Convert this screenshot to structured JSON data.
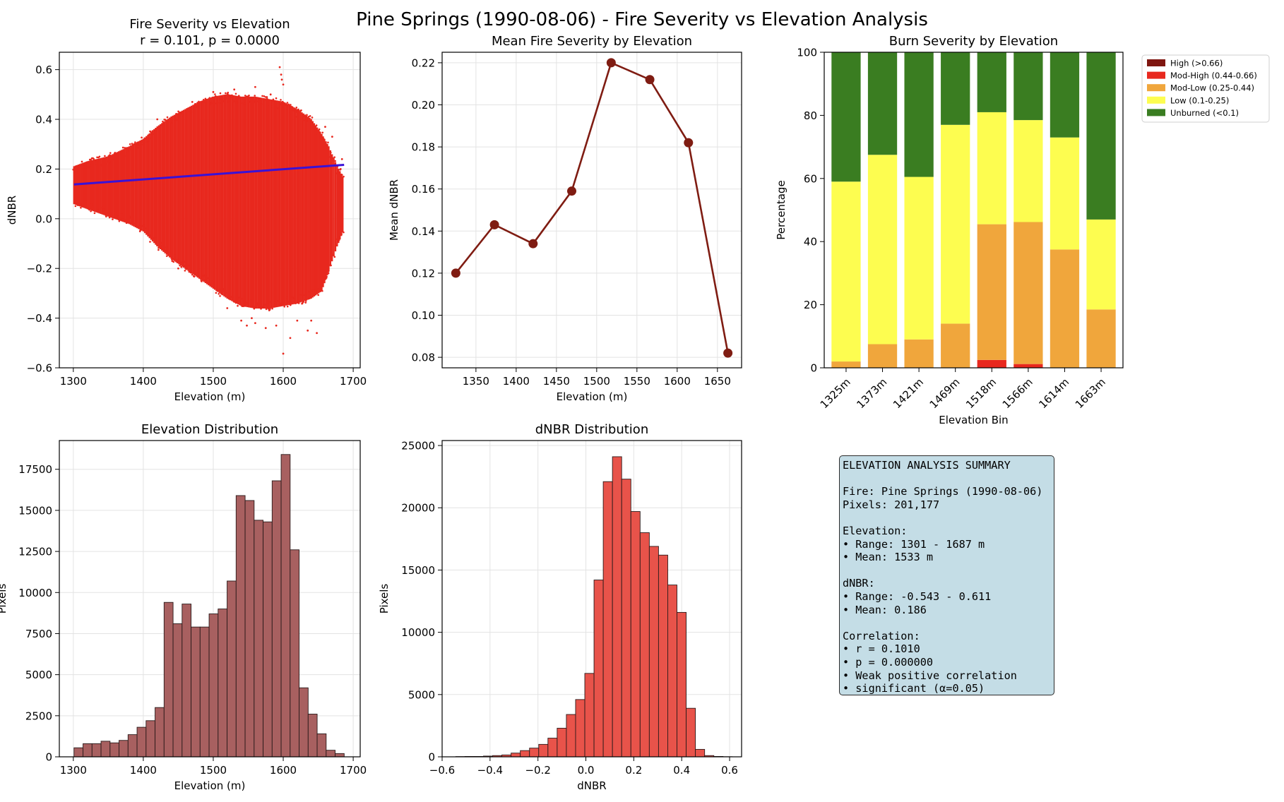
{
  "figure": {
    "title": "Pine Springs (1990-08-06) - Fire Severity vs Elevation Analysis"
  },
  "chart_data": [
    {
      "id": "scatter",
      "type": "scatter",
      "title": "Fire Severity vs Elevation",
      "subtitle": "r = 0.101, p = 0.0000",
      "xlabel": "Elevation (m)",
      "ylabel": "dNBR",
      "xlim": [
        1280,
        1710
      ],
      "ylim": [
        -0.6,
        0.67
      ],
      "xticks": [
        1300,
        1400,
        1500,
        1600,
        1700
      ],
      "yticks": [
        -0.6,
        -0.4,
        -0.2,
        0.0,
        0.2,
        0.4,
        0.6
      ],
      "ytick_labels": [
        "−0.6",
        "−0.4",
        "−0.2",
        "0.0",
        "0.2",
        "0.4",
        "0.6"
      ],
      "grid": true,
      "point_color": "#e8281e",
      "envelope": [
        {
          "x": 1301,
          "low": 0.05,
          "high": 0.22
        },
        {
          "x": 1320,
          "low": 0.03,
          "high": 0.24
        },
        {
          "x": 1350,
          "low": 0.0,
          "high": 0.26
        },
        {
          "x": 1380,
          "low": -0.03,
          "high": 0.3
        },
        {
          "x": 1400,
          "low": -0.06,
          "high": 0.33
        },
        {
          "x": 1420,
          "low": -0.12,
          "high": 0.38
        },
        {
          "x": 1440,
          "low": -0.17,
          "high": 0.42
        },
        {
          "x": 1460,
          "low": -0.21,
          "high": 0.45
        },
        {
          "x": 1480,
          "low": -0.25,
          "high": 0.48
        },
        {
          "x": 1500,
          "low": -0.29,
          "high": 0.5
        },
        {
          "x": 1520,
          "low": -0.33,
          "high": 0.51
        },
        {
          "x": 1540,
          "low": -0.36,
          "high": 0.5
        },
        {
          "x": 1560,
          "low": -0.37,
          "high": 0.5
        },
        {
          "x": 1580,
          "low": -0.37,
          "high": 0.49
        },
        {
          "x": 1600,
          "low": -0.36,
          "high": 0.48
        },
        {
          "x": 1620,
          "low": -0.35,
          "high": 0.45
        },
        {
          "x": 1640,
          "low": -0.33,
          "high": 0.41
        },
        {
          "x": 1655,
          "low": -0.3,
          "high": 0.35
        },
        {
          "x": 1665,
          "low": -0.22,
          "high": 0.3
        },
        {
          "x": 1677,
          "low": -0.12,
          "high": 0.22
        },
        {
          "x": 1687,
          "low": -0.05,
          "high": 0.17
        }
      ],
      "outliers": [
        [
          1595,
          0.61
        ],
        [
          1597,
          0.58
        ],
        [
          1600,
          0.54
        ],
        [
          1598,
          0.56
        ],
        [
          1600,
          -0.543
        ],
        [
          1540,
          -0.41
        ],
        [
          1548,
          -0.43
        ],
        [
          1560,
          -0.42
        ],
        [
          1575,
          -0.44
        ],
        [
          1590,
          -0.43
        ],
        [
          1620,
          -0.41
        ],
        [
          1635,
          -0.45
        ],
        [
          1640,
          -0.41
        ],
        [
          1450,
          -0.2
        ],
        [
          1430,
          -0.12
        ],
        [
          1470,
          0.47
        ],
        [
          1500,
          0.51
        ],
        [
          1530,
          0.52
        ],
        [
          1560,
          0.53
        ],
        [
          1582,
          0.5
        ],
        [
          1660,
          0.37
        ],
        [
          1670,
          0.33
        ],
        [
          1682,
          0.2
        ],
        [
          1684,
          0.24
        ],
        [
          1680,
          -0.02
        ],
        [
          1648,
          -0.46
        ],
        [
          1610,
          -0.48
        ],
        [
          1555,
          -0.4
        ],
        [
          1520,
          -0.36
        ],
        [
          1420,
          0.4
        ]
      ],
      "regression": {
        "x": [
          1301,
          1687
        ],
        "y": [
          0.138,
          0.217
        ],
        "color": "#3a12d6"
      }
    },
    {
      "id": "mean-line",
      "type": "line",
      "title": "Mean Fire Severity by Elevation",
      "xlabel": "Elevation (m)",
      "ylabel": "Mean dNBR",
      "xlim": [
        1308,
        1680
      ],
      "ylim": [
        0.075,
        0.225
      ],
      "xticks": [
        1350,
        1400,
        1450,
        1500,
        1550,
        1600,
        1650
      ],
      "yticks": [
        0.08,
        0.1,
        0.12,
        0.14,
        0.16,
        0.18,
        0.2,
        0.22
      ],
      "ytick_labels": [
        "0.08",
        "0.10",
        "0.12",
        "0.14",
        "0.16",
        "0.18",
        "0.20",
        "0.22"
      ],
      "grid": true,
      "color": "#7f1c12",
      "x": [
        1325,
        1373,
        1421,
        1469,
        1518,
        1566,
        1614,
        1663
      ],
      "y": [
        0.12,
        0.143,
        0.134,
        0.159,
        0.22,
        0.212,
        0.182,
        0.082
      ]
    },
    {
      "id": "burn-stack",
      "type": "bar",
      "stacked": true,
      "title": "Burn Severity by Elevation",
      "xlabel": "Elevation Bin",
      "ylabel": "Percentage",
      "ylim": [
        0,
        100
      ],
      "yticks": [
        0,
        20,
        40,
        60,
        80,
        100
      ],
      "grid": false,
      "legend": "outside-right",
      "categories": [
        "1325m",
        "1373m",
        "1421m",
        "1469m",
        "1518m",
        "1566m",
        "1614m",
        "1663m"
      ],
      "series": [
        {
          "name": "High (>0.66)",
          "color": "#7f1610",
          "values": [
            0,
            0,
            0,
            0,
            0,
            0,
            0,
            0
          ]
        },
        {
          "name": "Mod-High (0.44-0.66)",
          "color": "#e8281e",
          "values": [
            0,
            0,
            0,
            0,
            2.5,
            1.2,
            0,
            0
          ]
        },
        {
          "name": "Mod-Low (0.25-0.44)",
          "color": "#f0a63c",
          "values": [
            2,
            7.5,
            9,
            14,
            43,
            45,
            37.5,
            18.5
          ]
        },
        {
          "name": "Low (0.1-0.25)",
          "color": "#fdfd50",
          "values": [
            57,
            60,
            51.5,
            63,
            35.5,
            32.3,
            35.5,
            28.5
          ]
        },
        {
          "name": "Unburned (<0.1)",
          "color": "#3a7d21",
          "values": [
            41,
            32.5,
            39.5,
            23,
            19,
            21.5,
            27,
            53
          ]
        }
      ]
    },
    {
      "id": "elev-hist",
      "type": "bar",
      "title": "Elevation Distribution",
      "xlabel": "Elevation (m)",
      "ylabel": "Pixels",
      "xlim": [
        1280,
        1710
      ],
      "ylim": [
        0,
        19250
      ],
      "xticks": [
        1300,
        1400,
        1500,
        1600,
        1700
      ],
      "yticks": [
        0,
        2500,
        5000,
        7500,
        10000,
        12500,
        15000,
        17500
      ],
      "grid": true,
      "color": "#a86060",
      "bin_start": 1301,
      "bin_width": 12.87,
      "values": [
        550,
        800,
        800,
        950,
        850,
        1000,
        1350,
        1800,
        2200,
        3000,
        9400,
        8100,
        9300,
        7900,
        7900,
        8700,
        9000,
        10700,
        15900,
        15600,
        14400,
        14300,
        16800,
        18400,
        12600,
        4200,
        2600,
        1400,
        400,
        200
      ]
    },
    {
      "id": "dnbr-hist",
      "type": "bar",
      "title": "dNBR Distribution",
      "xlabel": "dNBR",
      "ylabel": "Pixels",
      "xlim": [
        -0.6,
        0.65
      ],
      "ylim": [
        0,
        25400
      ],
      "xticks": [
        -0.6,
        -0.4,
        -0.2,
        0.0,
        0.2,
        0.4,
        0.6
      ],
      "xtick_labels": [
        "−0.6",
        "−0.4",
        "−0.2",
        "0.0",
        "0.2",
        "0.4",
        "0.6"
      ],
      "yticks": [
        0,
        5000,
        10000,
        15000,
        20000,
        25000
      ],
      "grid": true,
      "color": "#e8534a",
      "bin_start": -0.543,
      "bin_width": 0.03847,
      "values": [
        20,
        30,
        30,
        60,
        100,
        150,
        300,
        500,
        700,
        1000,
        1500,
        2300,
        3400,
        4600,
        6700,
        14200,
        22100,
        24100,
        22300,
        19700,
        18000,
        16900,
        16200,
        13800,
        11600,
        3900,
        600,
        100,
        30,
        10
      ]
    }
  ],
  "summary": {
    "heading": "ELEVATION ANALYSIS SUMMARY",
    "fire": "Fire: Pine Springs (1990-08-06)",
    "pixels": "Pixels: 201,177",
    "elev_heading": "Elevation:",
    "elev_range": "• Range: 1301 - 1687 m",
    "elev_mean": "• Mean: 1533 m",
    "dnbr_heading": "dNBR:",
    "dnbr_range": "• Range: -0.543 - 0.611",
    "dnbr_mean": "• Mean: 0.186",
    "corr_heading": "Correlation:",
    "corr_r": "• r = 0.1010",
    "corr_p": "• p = 0.000000",
    "corr_desc": "• Weak positive correlation",
    "corr_sig": "• significant (α=0.05)"
  }
}
